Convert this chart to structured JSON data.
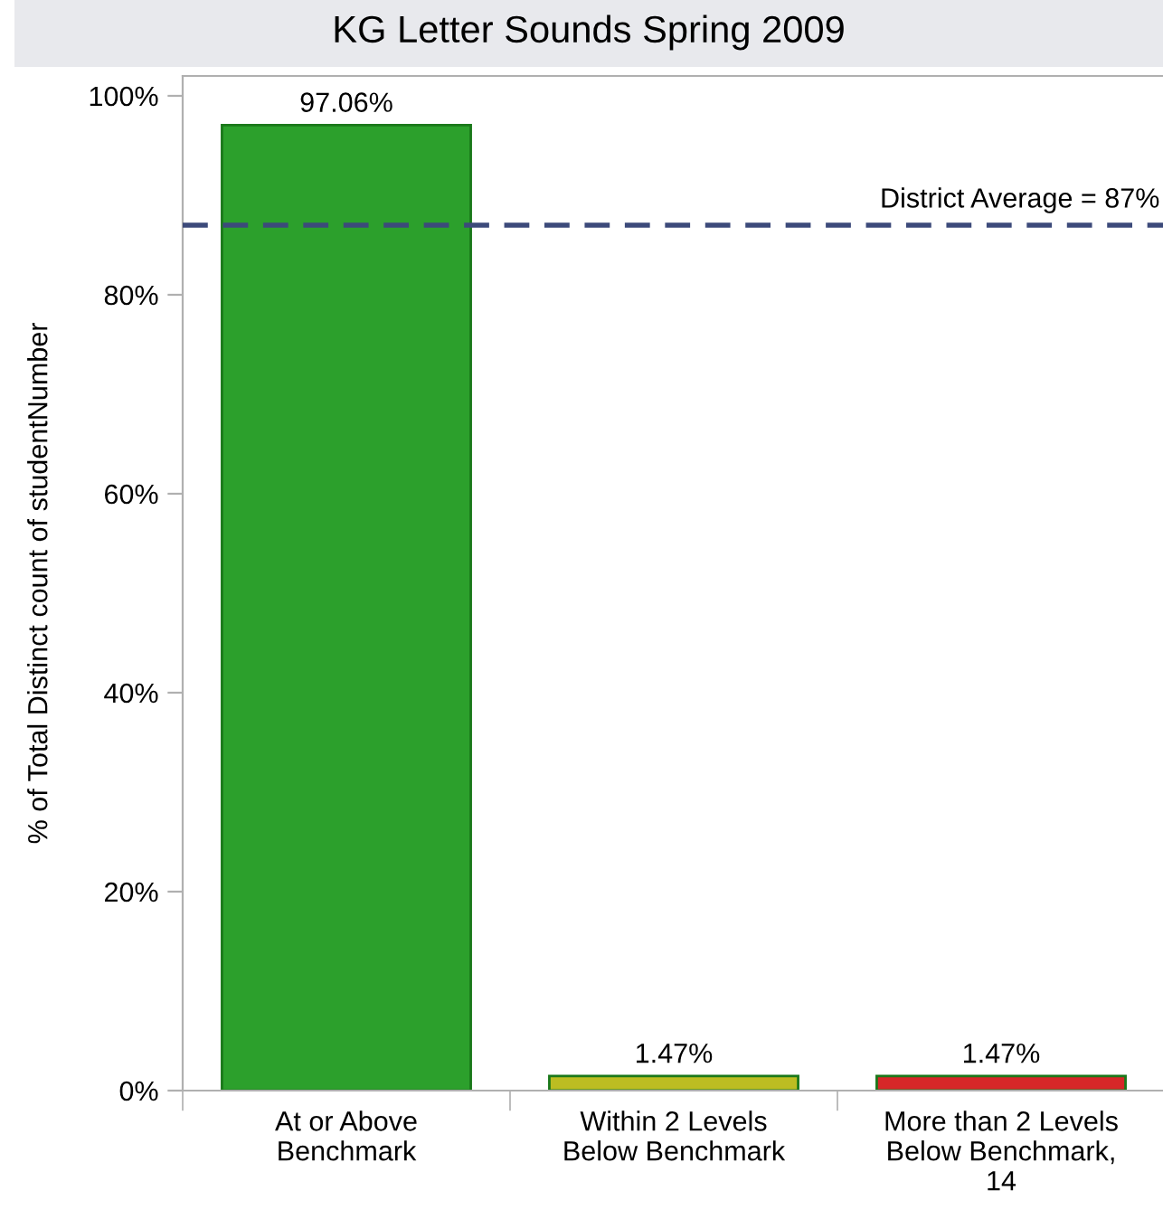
{
  "chart_data": {
    "type": "bar",
    "title": "KG Letter Sounds Spring 2009",
    "ylabel": "% of Total Distinct count of studentNumber",
    "categories": [
      "At or Above\nBenchmark",
      "Within 2 Levels\nBelow Benchmark",
      "More than 2 Levels\nBelow Benchmark,\n14"
    ],
    "values": [
      97.06,
      1.47,
      1.47
    ],
    "colors": [
      "#2ca02c",
      "#bcbd22",
      "#d62728"
    ],
    "value_labels": [
      "97.06%",
      "1.47%",
      "1.47%"
    ],
    "ylim": [
      0,
      102
    ],
    "yticks": [
      {
        "value": 0,
        "label": "0%"
      },
      {
        "value": 20,
        "label": "20%"
      },
      {
        "value": 40,
        "label": "40%"
      },
      {
        "value": 60,
        "label": "60%"
      },
      {
        "value": 80,
        "label": "80%"
      },
      {
        "value": 100,
        "label": "100%"
      }
    ],
    "ref_lines": [
      {
        "axis": "y",
        "value": 87,
        "label": "District Average = 87%",
        "color": "#3c4a7a",
        "line_style": "dashed"
      }
    ],
    "grid": false
  }
}
